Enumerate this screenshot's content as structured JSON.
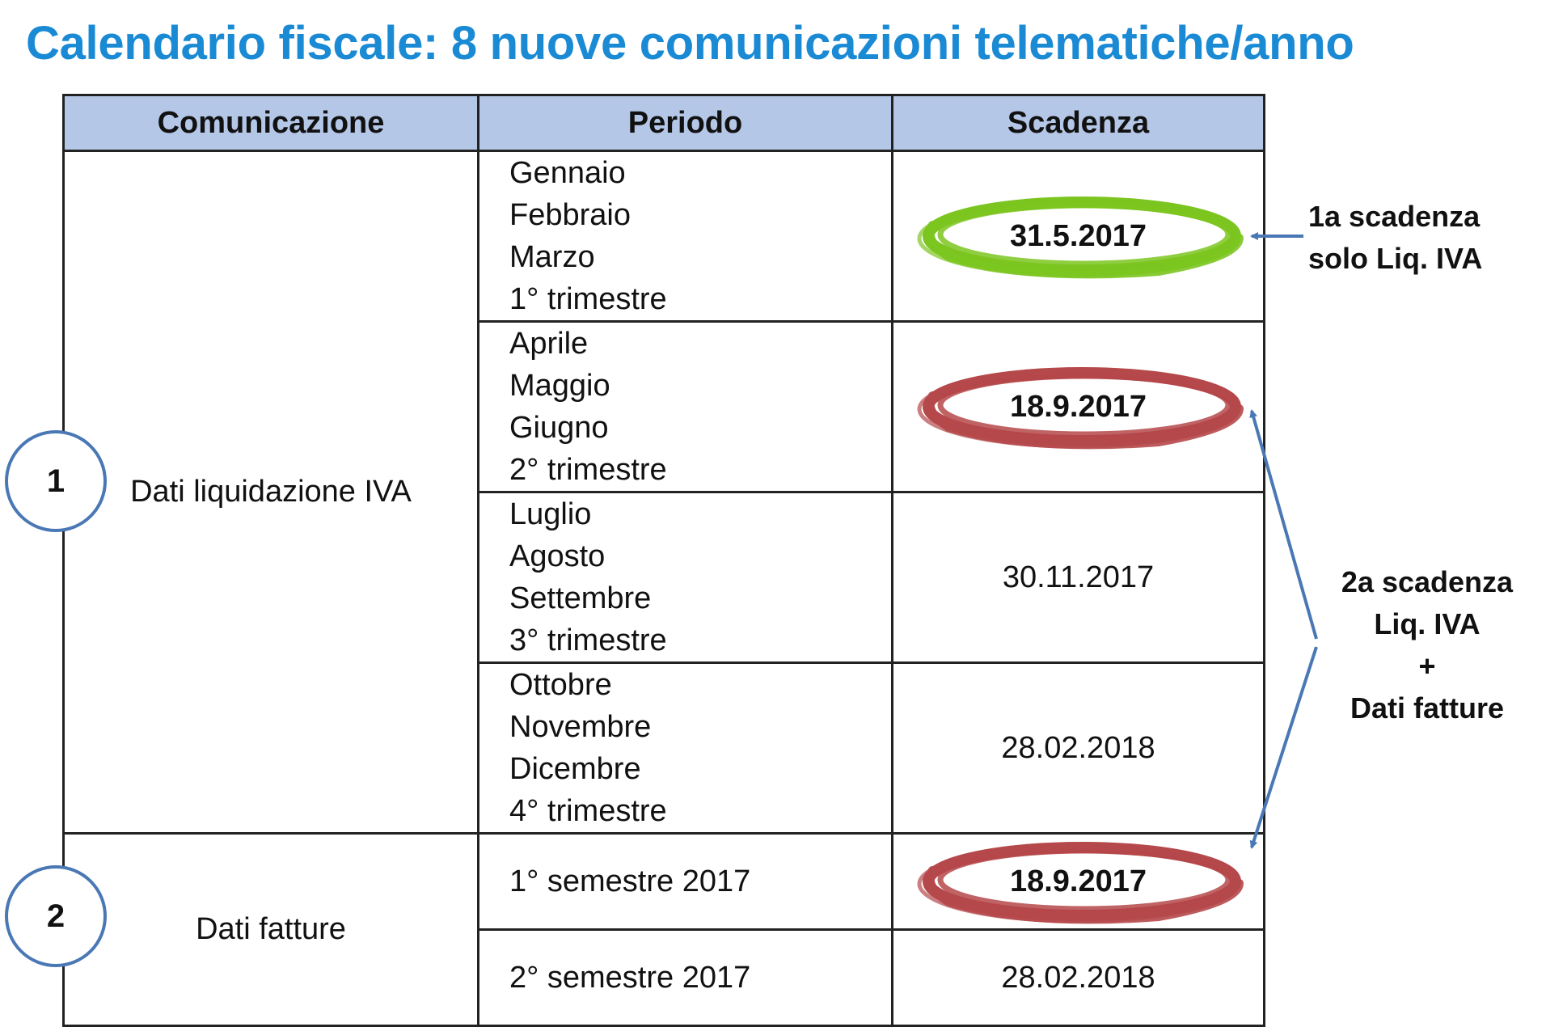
{
  "title": "Calendario fiscale: 8 nuove comunicazioni telematiche/anno",
  "headers": [
    "Comunicazione",
    "Periodo",
    "Scadenza"
  ],
  "comunicazioni": [
    {
      "number": "1",
      "label": "Dati liquidazione IVA"
    },
    {
      "number": "2",
      "label": "Dati fatture"
    }
  ],
  "rows": [
    {
      "periodo": [
        "Gennaio",
        "Febbraio",
        "Marzo",
        "1° trimestre"
      ],
      "scadenza": "31.5.2017",
      "highlight": "green"
    },
    {
      "periodo": [
        "Aprile",
        "Maggio",
        "Giugno",
        "2° trimestre"
      ],
      "scadenza": "18.9.2017",
      "highlight": "red"
    },
    {
      "periodo": [
        "Luglio",
        "Agosto",
        "Settembre",
        "3° trimestre"
      ],
      "scadenza": "30.11.2017",
      "highlight": ""
    },
    {
      "periodo": [
        "Ottobre",
        "Novembre",
        "Dicembre",
        "4° trimestre"
      ],
      "scadenza": "28.02.2018",
      "highlight": ""
    },
    {
      "periodo": [
        "1° semestre 2017"
      ],
      "scadenza": "18.9.2017",
      "highlight": "red"
    },
    {
      "periodo": [
        "2° semestre 2017"
      ],
      "scadenza": "28.02.2018",
      "highlight": ""
    }
  ],
  "notes": {
    "first": [
      "1a scadenza",
      "solo Liq. IVA"
    ],
    "second": [
      "2a scadenza",
      "Liq. IVA",
      "+",
      "Dati fatture"
    ]
  },
  "colors": {
    "title": "#1a8ad4",
    "header_bg": "#b4c7e7",
    "ring_green": "#7cc520",
    "ring_red": "#b5484a",
    "arrow": "#4a78b5"
  }
}
